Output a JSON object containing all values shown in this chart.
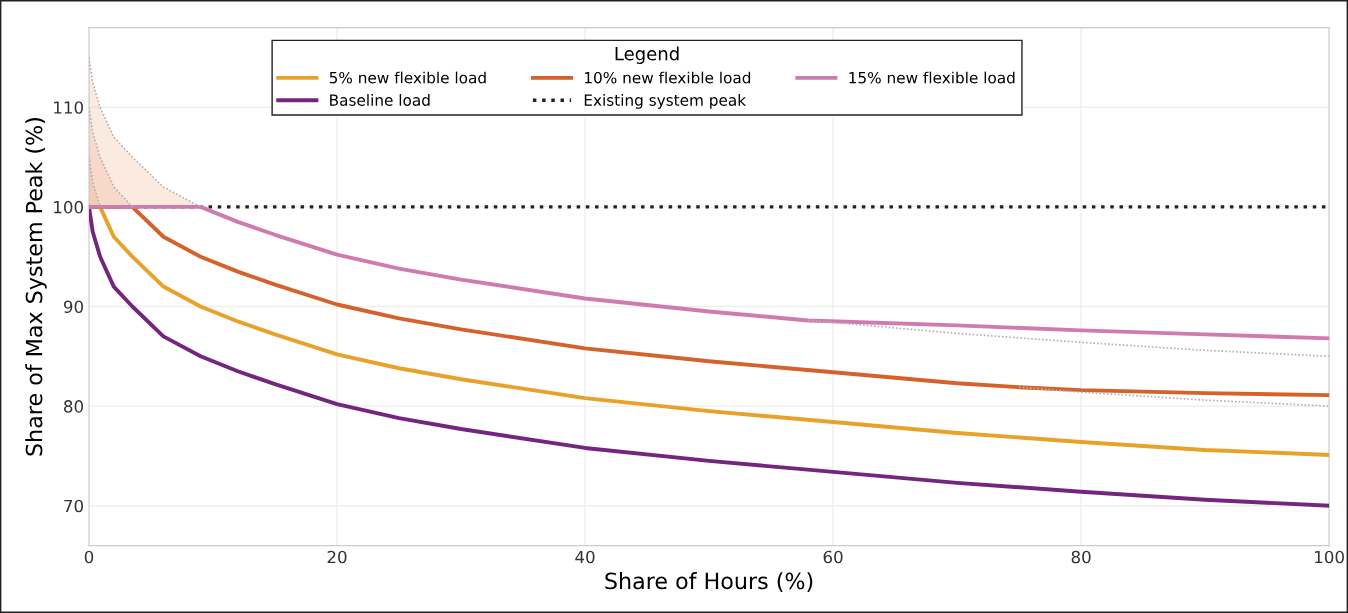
{
  "chart_data": {
    "type": "line",
    "xlabel": "Share of Hours (%)",
    "ylabel": "Share of Max System Peak (%)",
    "legend_title": "Legend",
    "legend": "top",
    "grid": true,
    "line_style": "solid",
    "marker": "none",
    "xlim": [
      0,
      100
    ],
    "ylim": [
      66,
      118
    ],
    "xticks": [
      0,
      20,
      40,
      60,
      80,
      100
    ],
    "yticks": [
      70,
      80,
      90,
      100,
      110
    ],
    "ref_lines": [
      {
        "axis": "y",
        "value": 100,
        "label": "Existing system peak",
        "color": "#222222",
        "line_style": "dotted"
      }
    ],
    "series": [
      {
        "color": "#b8b0b0",
        "line_style": "dotted",
        "x": [
          0,
          0.3,
          0.9
        ],
        "values": [
          105,
          102.5,
          100
        ],
        "lower": [
          100,
          100,
          100
        ],
        "upper": [
          105,
          102.5,
          100
        ]
      },
      {
        "color": "#b8b0b0",
        "line_style": "dotted",
        "x": [
          0,
          0.3,
          0.9,
          2,
          3.5
        ],
        "values": [
          110,
          107.5,
          105,
          102,
          100
        ],
        "lower": [
          100,
          100,
          100,
          100,
          100
        ],
        "upper": [
          110,
          107.5,
          105,
          102,
          100
        ]
      },
      {
        "color": "#b8b0b0",
        "line_style": "dotted",
        "x": [
          0,
          0.3,
          0.9,
          2,
          3.5,
          6,
          9
        ],
        "values": [
          115,
          112.5,
          110,
          107,
          105,
          102,
          100
        ],
        "lower": [
          100,
          100,
          100,
          100,
          100,
          100,
          100
        ],
        "upper": [
          115,
          112.5,
          110,
          107,
          105,
          102,
          100
        ]
      },
      {
        "color": "#b8b0b0",
        "line_style": "dotted",
        "x": [
          75,
          80,
          90,
          100
        ],
        "values": [
          81.9,
          81.4,
          80.6,
          80
        ]
      },
      {
        "color": "#b8b0b0",
        "line_style": "dotted",
        "x": [
          58,
          60,
          70,
          80,
          90,
          100
        ],
        "values": [
          88.6,
          88.4,
          87.3,
          86.4,
          85.6,
          85
        ]
      },
      {
        "name": "Baseline load",
        "color": "#74267e",
        "x": [
          0,
          0.3,
          0.9,
          2,
          3.5,
          6,
          9,
          12,
          15,
          20,
          25,
          30,
          40,
          50,
          60,
          70,
          80,
          90,
          100
        ],
        "values": [
          100,
          97.5,
          95,
          92,
          90,
          87,
          85,
          83.5,
          82.2,
          80.2,
          78.8,
          77.7,
          75.8,
          74.5,
          73.4,
          72.3,
          71.4,
          70.6,
          70
        ]
      },
      {
        "name": "5% new flexible load",
        "color": "#e8a22a",
        "x": [
          0,
          0.9,
          2,
          3.5,
          6,
          9,
          12,
          15,
          20,
          25,
          30,
          40,
          50,
          60,
          70,
          80,
          90,
          100
        ],
        "values": [
          100,
          100,
          97,
          95,
          92,
          90,
          88.5,
          87.2,
          85.2,
          83.8,
          82.7,
          80.8,
          79.5,
          78.4,
          77.3,
          76.4,
          75.6,
          75.1
        ]
      },
      {
        "name": "10% new flexible load",
        "color": "#d4622a",
        "x": [
          0,
          3.5,
          6,
          9,
          12,
          15,
          20,
          25,
          30,
          40,
          50,
          60,
          70,
          75,
          80,
          90,
          100
        ],
        "values": [
          100,
          100,
          97,
          95,
          93.5,
          92.2,
          90.2,
          88.8,
          87.7,
          85.8,
          84.5,
          83.4,
          82.3,
          81.9,
          81.6,
          81.3,
          81.1
        ]
      },
      {
        "name": "15% new flexible load",
        "color": "#cf7bb0",
        "x": [
          0,
          9,
          12,
          15,
          20,
          25,
          30,
          40,
          50,
          58,
          70,
          80,
          90,
          100
        ],
        "values": [
          100,
          100,
          98.5,
          97.2,
          95.2,
          93.8,
          92.7,
          90.8,
          89.5,
          88.6,
          88.1,
          87.6,
          87.2,
          86.8
        ]
      }
    ]
  }
}
